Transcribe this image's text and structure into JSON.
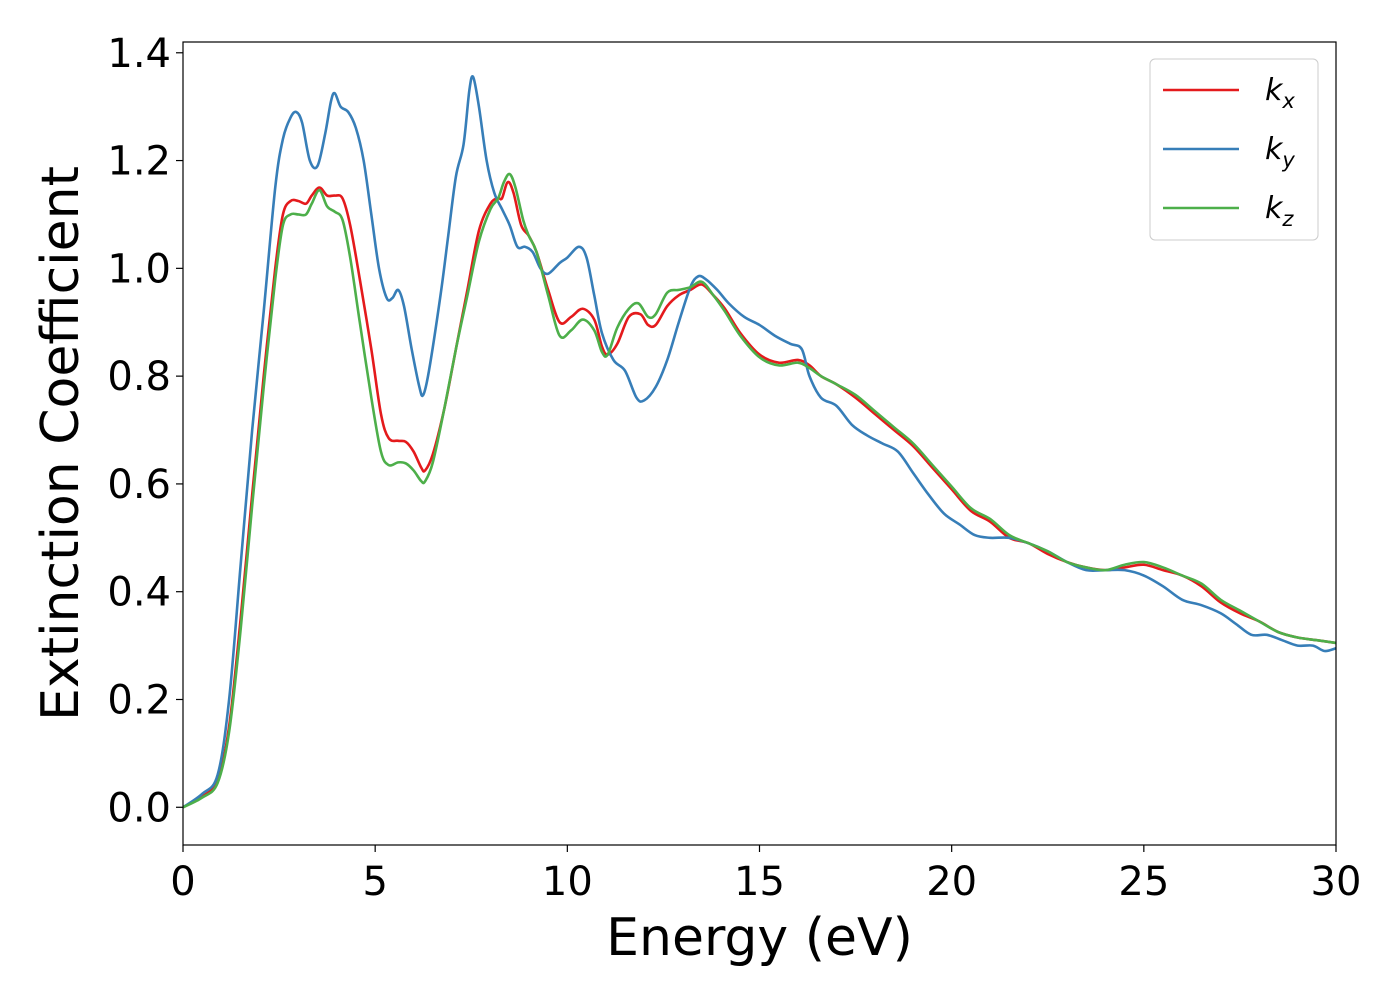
{
  "chart_data": {
    "type": "line",
    "xlabel": "Energy (eV)",
    "ylabel": "Extinction Coefficient",
    "xlim": [
      0,
      30
    ],
    "ylim": [
      -0.07,
      1.42
    ],
    "xticks": [
      0,
      5,
      10,
      15,
      20,
      25,
      30
    ],
    "xtick_labels": [
      "0",
      "5",
      "10",
      "15",
      "20",
      "25",
      "30"
    ],
    "yticks": [
      0.0,
      0.2,
      0.4,
      0.6,
      0.8,
      1.0,
      1.2,
      1.4
    ],
    "ytick_labels": [
      "0.0",
      "0.2",
      "0.4",
      "0.6",
      "0.8",
      "1.0",
      "1.2",
      "1.4"
    ],
    "grid": false,
    "legend_position": "top-right",
    "series": [
      {
        "name": "k_x",
        "label_main": "k",
        "label_sub": "x",
        "color": "#e41a1c",
        "points": [
          [
            0,
            0
          ],
          [
            0.5,
            0.02
          ],
          [
            0.9,
            0.05
          ],
          [
            1.2,
            0.15
          ],
          [
            1.5,
            0.35
          ],
          [
            1.8,
            0.58
          ],
          [
            2.1,
            0.8
          ],
          [
            2.4,
            1.0
          ],
          [
            2.6,
            1.1
          ],
          [
            2.8,
            1.125
          ],
          [
            3.0,
            1.125
          ],
          [
            3.2,
            1.12
          ],
          [
            3.35,
            1.135
          ],
          [
            3.55,
            1.15
          ],
          [
            3.75,
            1.135
          ],
          [
            3.95,
            1.135
          ],
          [
            4.15,
            1.13
          ],
          [
            4.35,
            1.08
          ],
          [
            4.6,
            0.98
          ],
          [
            4.9,
            0.85
          ],
          [
            5.15,
            0.73
          ],
          [
            5.35,
            0.685
          ],
          [
            5.6,
            0.68
          ],
          [
            5.8,
            0.678
          ],
          [
            6.0,
            0.66
          ],
          [
            6.2,
            0.63
          ],
          [
            6.3,
            0.625
          ],
          [
            6.5,
            0.655
          ],
          [
            6.8,
            0.74
          ],
          [
            7.1,
            0.85
          ],
          [
            7.4,
            0.96
          ],
          [
            7.7,
            1.07
          ],
          [
            8.0,
            1.12
          ],
          [
            8.2,
            1.13
          ],
          [
            8.3,
            1.13
          ],
          [
            8.45,
            1.16
          ],
          [
            8.6,
            1.14
          ],
          [
            8.8,
            1.08
          ],
          [
            9.0,
            1.06
          ],
          [
            9.2,
            1.03
          ],
          [
            9.5,
            0.96
          ],
          [
            9.8,
            0.9
          ],
          [
            10.1,
            0.91
          ],
          [
            10.4,
            0.925
          ],
          [
            10.7,
            0.905
          ],
          [
            10.9,
            0.855
          ],
          [
            11.05,
            0.84
          ],
          [
            11.3,
            0.86
          ],
          [
            11.6,
            0.91
          ],
          [
            11.9,
            0.915
          ],
          [
            12.1,
            0.895
          ],
          [
            12.3,
            0.895
          ],
          [
            12.6,
            0.93
          ],
          [
            12.9,
            0.95
          ],
          [
            13.2,
            0.96
          ],
          [
            13.5,
            0.97
          ],
          [
            13.8,
            0.95
          ],
          [
            14.1,
            0.925
          ],
          [
            14.5,
            0.88
          ],
          [
            15.0,
            0.84
          ],
          [
            15.5,
            0.825
          ],
          [
            16.0,
            0.83
          ],
          [
            16.3,
            0.82
          ],
          [
            16.6,
            0.8
          ],
          [
            17.0,
            0.785
          ],
          [
            17.5,
            0.76
          ],
          [
            18.0,
            0.73
          ],
          [
            18.5,
            0.7
          ],
          [
            19.0,
            0.67
          ],
          [
            19.5,
            0.63
          ],
          [
            20.0,
            0.59
          ],
          [
            20.5,
            0.55
          ],
          [
            21.0,
            0.53
          ],
          [
            21.5,
            0.5
          ],
          [
            22.0,
            0.49
          ],
          [
            22.5,
            0.47
          ],
          [
            23.0,
            0.455
          ],
          [
            23.5,
            0.445
          ],
          [
            24.0,
            0.44
          ],
          [
            24.5,
            0.445
          ],
          [
            25.0,
            0.45
          ],
          [
            25.5,
            0.44
          ],
          [
            26.0,
            0.43
          ],
          [
            26.5,
            0.41
          ],
          [
            27.0,
            0.38
          ],
          [
            27.5,
            0.36
          ],
          [
            28.0,
            0.345
          ],
          [
            28.5,
            0.325
          ],
          [
            29.0,
            0.315
          ],
          [
            29.5,
            0.31
          ],
          [
            30.0,
            0.305
          ]
        ]
      },
      {
        "name": "k_y",
        "label_main": "k",
        "label_sub": "y",
        "color": "#377eb8",
        "points": [
          [
            0,
            0
          ],
          [
            0.5,
            0.025
          ],
          [
            0.9,
            0.06
          ],
          [
            1.2,
            0.2
          ],
          [
            1.5,
            0.45
          ],
          [
            1.8,
            0.7
          ],
          [
            2.1,
            0.92
          ],
          [
            2.4,
            1.15
          ],
          [
            2.6,
            1.24
          ],
          [
            2.8,
            1.28
          ],
          [
            2.95,
            1.29
          ],
          [
            3.1,
            1.27
          ],
          [
            3.3,
            1.2
          ],
          [
            3.5,
            1.19
          ],
          [
            3.7,
            1.25
          ],
          [
            3.85,
            1.31
          ],
          [
            3.95,
            1.325
          ],
          [
            4.1,
            1.3
          ],
          [
            4.3,
            1.29
          ],
          [
            4.5,
            1.26
          ],
          [
            4.7,
            1.2
          ],
          [
            4.9,
            1.1
          ],
          [
            5.1,
            1.0
          ],
          [
            5.3,
            0.945
          ],
          [
            5.45,
            0.945
          ],
          [
            5.6,
            0.96
          ],
          [
            5.75,
            0.93
          ],
          [
            5.95,
            0.85
          ],
          [
            6.15,
            0.78
          ],
          [
            6.25,
            0.765
          ],
          [
            6.4,
            0.81
          ],
          [
            6.7,
            0.95
          ],
          [
            6.9,
            1.06
          ],
          [
            7.1,
            1.17
          ],
          [
            7.3,
            1.23
          ],
          [
            7.45,
            1.33
          ],
          [
            7.55,
            1.355
          ],
          [
            7.7,
            1.3
          ],
          [
            7.9,
            1.2
          ],
          [
            8.1,
            1.14
          ],
          [
            8.3,
            1.11
          ],
          [
            8.5,
            1.08
          ],
          [
            8.7,
            1.04
          ],
          [
            8.9,
            1.04
          ],
          [
            9.1,
            1.03
          ],
          [
            9.3,
            1.0
          ],
          [
            9.5,
            0.99
          ],
          [
            9.8,
            1.01
          ],
          [
            10.0,
            1.02
          ],
          [
            10.3,
            1.04
          ],
          [
            10.5,
            1.02
          ],
          [
            10.7,
            0.95
          ],
          [
            10.9,
            0.88
          ],
          [
            11.2,
            0.83
          ],
          [
            11.5,
            0.81
          ],
          [
            11.8,
            0.76
          ],
          [
            12.0,
            0.755
          ],
          [
            12.3,
            0.78
          ],
          [
            12.6,
            0.83
          ],
          [
            12.9,
            0.9
          ],
          [
            13.2,
            0.965
          ],
          [
            13.4,
            0.985
          ],
          [
            13.6,
            0.98
          ],
          [
            13.9,
            0.96
          ],
          [
            14.2,
            0.935
          ],
          [
            14.6,
            0.91
          ],
          [
            15.0,
            0.895
          ],
          [
            15.4,
            0.875
          ],
          [
            15.8,
            0.86
          ],
          [
            16.1,
            0.85
          ],
          [
            16.3,
            0.8
          ],
          [
            16.6,
            0.76
          ],
          [
            17.0,
            0.745
          ],
          [
            17.4,
            0.71
          ],
          [
            17.8,
            0.69
          ],
          [
            18.2,
            0.675
          ],
          [
            18.6,
            0.66
          ],
          [
            19.0,
            0.62
          ],
          [
            19.4,
            0.58
          ],
          [
            19.8,
            0.545
          ],
          [
            20.2,
            0.525
          ],
          [
            20.6,
            0.505
          ],
          [
            21.0,
            0.5
          ],
          [
            21.5,
            0.5
          ],
          [
            22.0,
            0.49
          ],
          [
            22.5,
            0.475
          ],
          [
            23.0,
            0.455
          ],
          [
            23.5,
            0.44
          ],
          [
            24.0,
            0.44
          ],
          [
            24.5,
            0.44
          ],
          [
            25.0,
            0.43
          ],
          [
            25.5,
            0.41
          ],
          [
            26.0,
            0.385
          ],
          [
            26.5,
            0.375
          ],
          [
            27.0,
            0.36
          ],
          [
            27.4,
            0.34
          ],
          [
            27.8,
            0.32
          ],
          [
            28.2,
            0.32
          ],
          [
            28.6,
            0.31
          ],
          [
            29.0,
            0.3
          ],
          [
            29.4,
            0.3
          ],
          [
            29.7,
            0.29
          ],
          [
            30.0,
            0.295
          ]
        ]
      },
      {
        "name": "k_z",
        "label_main": "k",
        "label_sub": "z",
        "color": "#4daf4a",
        "points": [
          [
            0,
            0
          ],
          [
            0.5,
            0.018
          ],
          [
            0.9,
            0.045
          ],
          [
            1.2,
            0.14
          ],
          [
            1.5,
            0.33
          ],
          [
            1.8,
            0.56
          ],
          [
            2.1,
            0.78
          ],
          [
            2.4,
            0.98
          ],
          [
            2.6,
            1.08
          ],
          [
            2.8,
            1.1
          ],
          [
            3.0,
            1.1
          ],
          [
            3.2,
            1.1
          ],
          [
            3.35,
            1.12
          ],
          [
            3.55,
            1.145
          ],
          [
            3.75,
            1.115
          ],
          [
            3.95,
            1.105
          ],
          [
            4.15,
            1.09
          ],
          [
            4.35,
            1.02
          ],
          [
            4.6,
            0.9
          ],
          [
            4.9,
            0.76
          ],
          [
            5.15,
            0.66
          ],
          [
            5.35,
            0.635
          ],
          [
            5.6,
            0.64
          ],
          [
            5.8,
            0.638
          ],
          [
            6.0,
            0.625
          ],
          [
            6.2,
            0.605
          ],
          [
            6.3,
            0.605
          ],
          [
            6.5,
            0.64
          ],
          [
            6.8,
            0.74
          ],
          [
            7.1,
            0.85
          ],
          [
            7.4,
            0.95
          ],
          [
            7.7,
            1.05
          ],
          [
            8.0,
            1.11
          ],
          [
            8.2,
            1.13
          ],
          [
            8.35,
            1.16
          ],
          [
            8.5,
            1.175
          ],
          [
            8.65,
            1.15
          ],
          [
            8.85,
            1.09
          ],
          [
            9.0,
            1.06
          ],
          [
            9.2,
            1.03
          ],
          [
            9.5,
            0.95
          ],
          [
            9.8,
            0.875
          ],
          [
            10.1,
            0.885
          ],
          [
            10.4,
            0.905
          ],
          [
            10.7,
            0.885
          ],
          [
            10.9,
            0.845
          ],
          [
            11.05,
            0.84
          ],
          [
            11.3,
            0.89
          ],
          [
            11.6,
            0.925
          ],
          [
            11.85,
            0.935
          ],
          [
            12.1,
            0.91
          ],
          [
            12.3,
            0.915
          ],
          [
            12.6,
            0.955
          ],
          [
            12.9,
            0.96
          ],
          [
            13.2,
            0.965
          ],
          [
            13.5,
            0.975
          ],
          [
            13.8,
            0.95
          ],
          [
            14.1,
            0.92
          ],
          [
            14.5,
            0.875
          ],
          [
            15.0,
            0.835
          ],
          [
            15.5,
            0.82
          ],
          [
            16.0,
            0.825
          ],
          [
            16.3,
            0.815
          ],
          [
            16.6,
            0.8
          ],
          [
            17.0,
            0.785
          ],
          [
            17.5,
            0.765
          ],
          [
            18.0,
            0.735
          ],
          [
            18.5,
            0.705
          ],
          [
            19.0,
            0.675
          ],
          [
            19.5,
            0.635
          ],
          [
            20.0,
            0.595
          ],
          [
            20.5,
            0.555
          ],
          [
            21.0,
            0.535
          ],
          [
            21.5,
            0.505
          ],
          [
            22.0,
            0.49
          ],
          [
            22.5,
            0.475
          ],
          [
            23.0,
            0.455
          ],
          [
            23.5,
            0.445
          ],
          [
            24.0,
            0.44
          ],
          [
            24.5,
            0.45
          ],
          [
            25.0,
            0.455
          ],
          [
            25.5,
            0.445
          ],
          [
            26.0,
            0.43
          ],
          [
            26.5,
            0.415
          ],
          [
            27.0,
            0.385
          ],
          [
            27.5,
            0.365
          ],
          [
            28.0,
            0.345
          ],
          [
            28.5,
            0.325
          ],
          [
            29.0,
            0.315
          ],
          [
            29.5,
            0.31
          ],
          [
            30.0,
            0.305
          ]
        ]
      }
    ]
  }
}
